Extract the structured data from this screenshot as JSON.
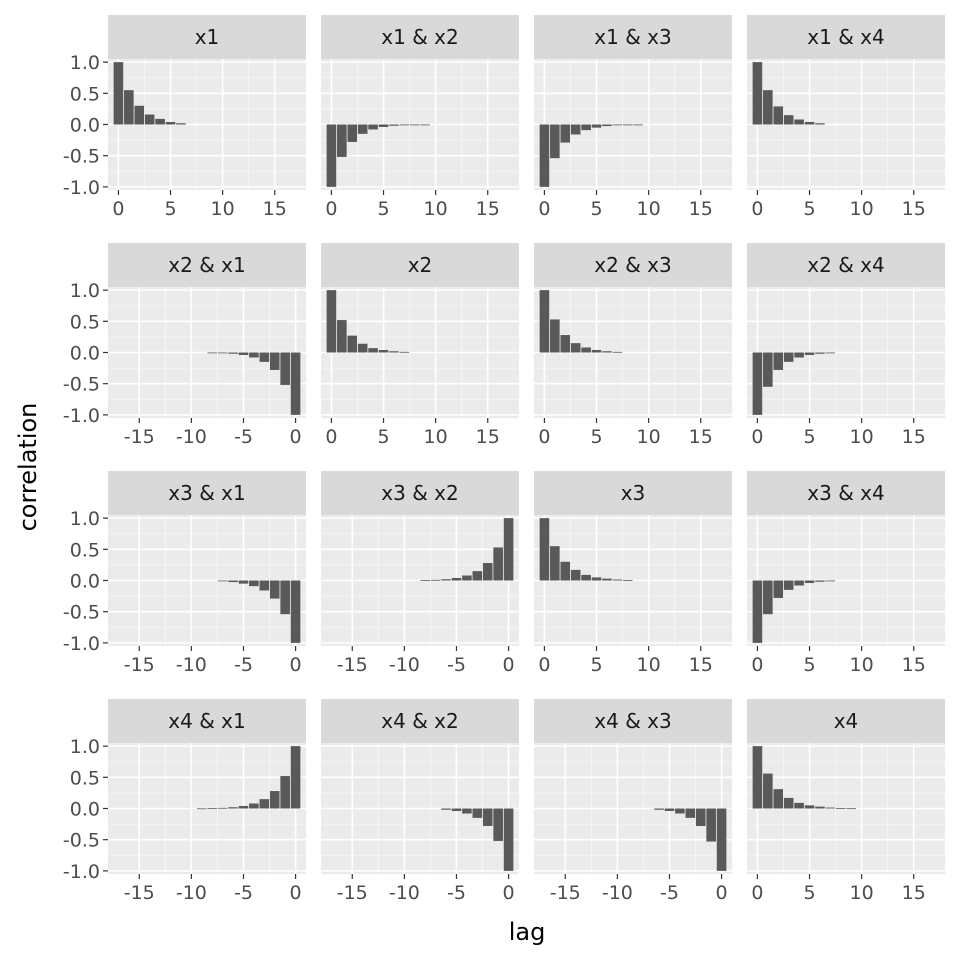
{
  "chart_data": {
    "type": "bar",
    "xlabel": "lag",
    "ylabel": "correlation",
    "ylim": [
      -1.05,
      1.05
    ],
    "y_ticks": [
      1.0,
      0.5,
      0.0,
      -0.5,
      -1.0
    ],
    "y_tick_labels": [
      "1.0",
      "0.5",
      "0.0",
      "-0.5",
      "-1.0"
    ],
    "x_ticks_positive": [
      0,
      5,
      10,
      15
    ],
    "x_tick_labels_positive": [
      "0",
      "5",
      "10",
      "15"
    ],
    "x_ticks_negative": [
      -15,
      -10,
      -5,
      0
    ],
    "x_tick_labels_negative": [
      "-15",
      "-10",
      "-5",
      "0"
    ],
    "xlim_positive": [
      -1,
      18
    ],
    "xlim_negative": [
      -18,
      1
    ],
    "grid": true,
    "panels": [
      {
        "title": "x1",
        "row": 0,
        "col": 0,
        "direction": "positive",
        "lags": [
          0,
          1,
          2,
          3,
          4,
          5,
          6
        ],
        "values": [
          1.0,
          0.55,
          0.3,
          0.16,
          0.09,
          0.04,
          0.02
        ]
      },
      {
        "title": "x1 & x2",
        "row": 0,
        "col": 1,
        "direction": "positive",
        "lags": [
          0,
          1,
          2,
          3,
          4,
          5,
          6,
          7,
          8,
          9
        ],
        "values": [
          -1.0,
          -0.52,
          -0.28,
          -0.15,
          -0.08,
          -0.04,
          -0.02,
          -0.01,
          -0.005,
          -0.002
        ]
      },
      {
        "title": "x1 & x3",
        "row": 0,
        "col": 2,
        "direction": "positive",
        "lags": [
          0,
          1,
          2,
          3,
          4,
          5,
          6,
          7,
          8,
          9
        ],
        "values": [
          -1.0,
          -0.54,
          -0.29,
          -0.16,
          -0.09,
          -0.05,
          -0.025,
          -0.012,
          -0.006,
          -0.003
        ]
      },
      {
        "title": "x1 & x4",
        "row": 0,
        "col": 3,
        "direction": "positive",
        "lags": [
          0,
          1,
          2,
          3,
          4,
          5,
          6
        ],
        "values": [
          1.0,
          0.55,
          0.29,
          0.15,
          0.08,
          0.04,
          0.02
        ]
      },
      {
        "title": "x2 & x1",
        "row": 1,
        "col": 0,
        "direction": "negative",
        "lags": [
          0,
          -1,
          -2,
          -3,
          -4,
          -5,
          -6,
          -7,
          -8
        ],
        "values": [
          -1.0,
          -0.52,
          -0.28,
          -0.15,
          -0.08,
          -0.04,
          -0.02,
          -0.01,
          -0.005
        ]
      },
      {
        "title": "x2",
        "row": 1,
        "col": 1,
        "direction": "positive",
        "lags": [
          0,
          1,
          2,
          3,
          4,
          5,
          6,
          7
        ],
        "values": [
          1.0,
          0.52,
          0.27,
          0.14,
          0.07,
          0.04,
          0.02,
          0.01
        ]
      },
      {
        "title": "x2 & x3",
        "row": 1,
        "col": 2,
        "direction": "positive",
        "lags": [
          0,
          1,
          2,
          3,
          4,
          5,
          6,
          7
        ],
        "values": [
          1.0,
          0.53,
          0.28,
          0.15,
          0.08,
          0.04,
          0.02,
          0.01
        ]
      },
      {
        "title": "x2 & x4",
        "row": 1,
        "col": 3,
        "direction": "positive",
        "lags": [
          0,
          1,
          2,
          3,
          4,
          5,
          6,
          7
        ],
        "values": [
          -1.0,
          -0.55,
          -0.28,
          -0.15,
          -0.08,
          -0.04,
          -0.02,
          -0.01
        ]
      },
      {
        "title": "x3 & x1",
        "row": 2,
        "col": 0,
        "direction": "negative",
        "lags": [
          0,
          -1,
          -2,
          -3,
          -4,
          -5,
          -6,
          -7
        ],
        "values": [
          -1.0,
          -0.54,
          -0.29,
          -0.16,
          -0.09,
          -0.05,
          -0.025,
          -0.012
        ]
      },
      {
        "title": "x3 & x2",
        "row": 2,
        "col": 1,
        "direction": "negative",
        "lags": [
          0,
          -1,
          -2,
          -3,
          -4,
          -5,
          -6,
          -7,
          -8
        ],
        "values": [
          1.0,
          0.53,
          0.28,
          0.15,
          0.08,
          0.04,
          0.02,
          0.01,
          0.005
        ]
      },
      {
        "title": "x3",
        "row": 2,
        "col": 2,
        "direction": "positive",
        "lags": [
          0,
          1,
          2,
          3,
          4,
          5,
          6,
          7,
          8
        ],
        "values": [
          1.0,
          0.55,
          0.3,
          0.17,
          0.09,
          0.05,
          0.03,
          0.015,
          0.008
        ]
      },
      {
        "title": "x3 & x4",
        "row": 2,
        "col": 3,
        "direction": "positive",
        "lags": [
          0,
          1,
          2,
          3,
          4,
          5,
          6,
          7
        ],
        "values": [
          -1.0,
          -0.54,
          -0.28,
          -0.15,
          -0.08,
          -0.04,
          -0.02,
          -0.01
        ]
      },
      {
        "title": "x4 & x1",
        "row": 3,
        "col": 0,
        "direction": "negative",
        "lags": [
          0,
          -1,
          -2,
          -3,
          -4,
          -5,
          -6,
          -7,
          -8,
          -9
        ],
        "values": [
          1.0,
          0.52,
          0.28,
          0.15,
          0.08,
          0.04,
          0.02,
          0.01,
          0.005,
          0.002
        ]
      },
      {
        "title": "x4 & x2",
        "row": 3,
        "col": 1,
        "direction": "negative",
        "lags": [
          0,
          -1,
          -2,
          -3,
          -4,
          -5,
          -6
        ],
        "values": [
          -1.0,
          -0.52,
          -0.28,
          -0.15,
          -0.08,
          -0.04,
          -0.02
        ]
      },
      {
        "title": "x4 & x3",
        "row": 3,
        "col": 2,
        "direction": "negative",
        "lags": [
          0,
          -1,
          -2,
          -3,
          -4,
          -5,
          -6
        ],
        "values": [
          -1.0,
          -0.53,
          -0.28,
          -0.15,
          -0.08,
          -0.04,
          -0.02
        ]
      },
      {
        "title": "x4",
        "row": 3,
        "col": 3,
        "direction": "positive",
        "lags": [
          0,
          1,
          2,
          3,
          4,
          5,
          6,
          7,
          8,
          9
        ],
        "values": [
          1.0,
          0.56,
          0.31,
          0.17,
          0.09,
          0.05,
          0.03,
          0.015,
          0.008,
          0.004
        ]
      }
    ]
  },
  "colors": {
    "panel_background": "#ebebeb",
    "strip_background": "#d9d9d9",
    "grid_major": "#ffffff",
    "bar_fill": "#595959",
    "tick_text": "#4d4d4d",
    "axis_tick": "#333333"
  }
}
